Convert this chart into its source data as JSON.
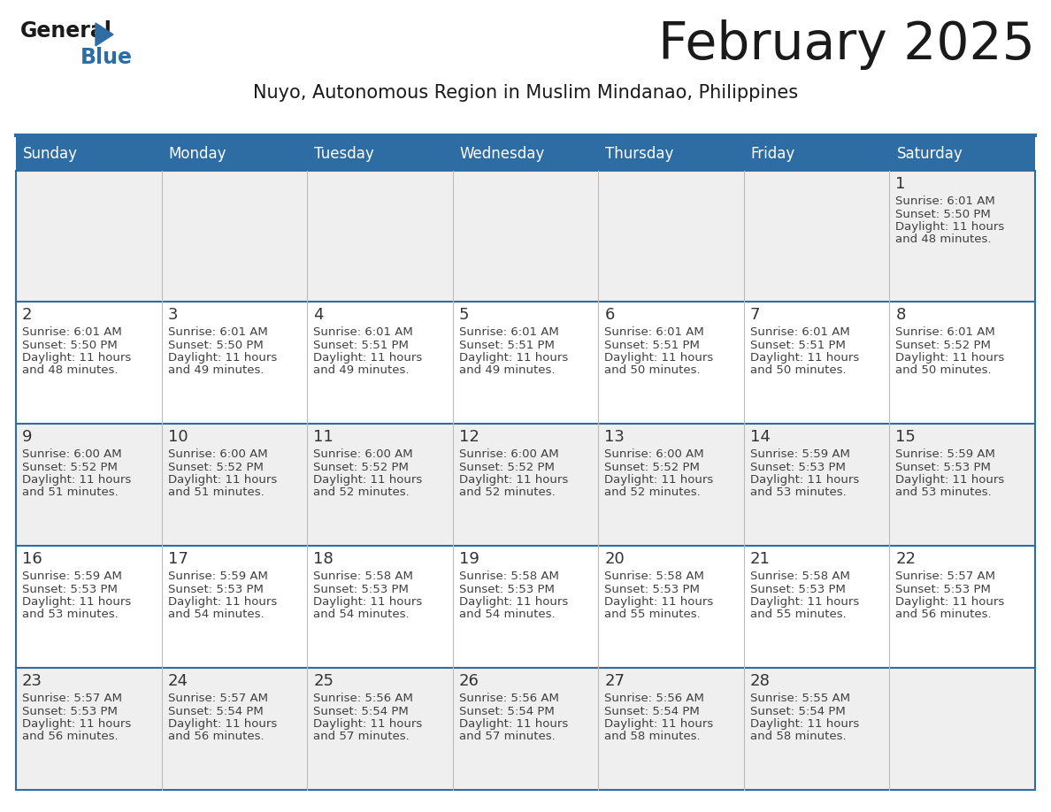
{
  "title": "February 2025",
  "subtitle": "Nuyo, Autonomous Region in Muslim Mindanao, Philippines",
  "header_bg": "#2E6DA4",
  "header_text": "#FFFFFF",
  "cell_bg_gray": "#EFEFEF",
  "cell_bg_white": "#FFFFFF",
  "border_color": "#2E6DA4",
  "grid_color": "#2E6DA4",
  "text_color": "#404040",
  "day_num_color": "#333333",
  "day_headers": [
    "Sunday",
    "Monday",
    "Tuesday",
    "Wednesday",
    "Thursday",
    "Friday",
    "Saturday"
  ],
  "days_data": [
    {
      "day": 1,
      "col": 6,
      "row": 0,
      "sunrise": "6:01 AM",
      "sunset": "5:50 PM",
      "daylight_min": "48"
    },
    {
      "day": 2,
      "col": 0,
      "row": 1,
      "sunrise": "6:01 AM",
      "sunset": "5:50 PM",
      "daylight_min": "48"
    },
    {
      "day": 3,
      "col": 1,
      "row": 1,
      "sunrise": "6:01 AM",
      "sunset": "5:50 PM",
      "daylight_min": "49"
    },
    {
      "day": 4,
      "col": 2,
      "row": 1,
      "sunrise": "6:01 AM",
      "sunset": "5:51 PM",
      "daylight_min": "49"
    },
    {
      "day": 5,
      "col": 3,
      "row": 1,
      "sunrise": "6:01 AM",
      "sunset": "5:51 PM",
      "daylight_min": "49"
    },
    {
      "day": 6,
      "col": 4,
      "row": 1,
      "sunrise": "6:01 AM",
      "sunset": "5:51 PM",
      "daylight_min": "50"
    },
    {
      "day": 7,
      "col": 5,
      "row": 1,
      "sunrise": "6:01 AM",
      "sunset": "5:51 PM",
      "daylight_min": "50"
    },
    {
      "day": 8,
      "col": 6,
      "row": 1,
      "sunrise": "6:01 AM",
      "sunset": "5:52 PM",
      "daylight_min": "50"
    },
    {
      "day": 9,
      "col": 0,
      "row": 2,
      "sunrise": "6:00 AM",
      "sunset": "5:52 PM",
      "daylight_min": "51"
    },
    {
      "day": 10,
      "col": 1,
      "row": 2,
      "sunrise": "6:00 AM",
      "sunset": "5:52 PM",
      "daylight_min": "51"
    },
    {
      "day": 11,
      "col": 2,
      "row": 2,
      "sunrise": "6:00 AM",
      "sunset": "5:52 PM",
      "daylight_min": "52"
    },
    {
      "day": 12,
      "col": 3,
      "row": 2,
      "sunrise": "6:00 AM",
      "sunset": "5:52 PM",
      "daylight_min": "52"
    },
    {
      "day": 13,
      "col": 4,
      "row": 2,
      "sunrise": "6:00 AM",
      "sunset": "5:52 PM",
      "daylight_min": "52"
    },
    {
      "day": 14,
      "col": 5,
      "row": 2,
      "sunrise": "5:59 AM",
      "sunset": "5:53 PM",
      "daylight_min": "53"
    },
    {
      "day": 15,
      "col": 6,
      "row": 2,
      "sunrise": "5:59 AM",
      "sunset": "5:53 PM",
      "daylight_min": "53"
    },
    {
      "day": 16,
      "col": 0,
      "row": 3,
      "sunrise": "5:59 AM",
      "sunset": "5:53 PM",
      "daylight_min": "53"
    },
    {
      "day": 17,
      "col": 1,
      "row": 3,
      "sunrise": "5:59 AM",
      "sunset": "5:53 PM",
      "daylight_min": "54"
    },
    {
      "day": 18,
      "col": 2,
      "row": 3,
      "sunrise": "5:58 AM",
      "sunset": "5:53 PM",
      "daylight_min": "54"
    },
    {
      "day": 19,
      "col": 3,
      "row": 3,
      "sunrise": "5:58 AM",
      "sunset": "5:53 PM",
      "daylight_min": "54"
    },
    {
      "day": 20,
      "col": 4,
      "row": 3,
      "sunrise": "5:58 AM",
      "sunset": "5:53 PM",
      "daylight_min": "55"
    },
    {
      "day": 21,
      "col": 5,
      "row": 3,
      "sunrise": "5:58 AM",
      "sunset": "5:53 PM",
      "daylight_min": "55"
    },
    {
      "day": 22,
      "col": 6,
      "row": 3,
      "sunrise": "5:57 AM",
      "sunset": "5:53 PM",
      "daylight_min": "56"
    },
    {
      "day": 23,
      "col": 0,
      "row": 4,
      "sunrise": "5:57 AM",
      "sunset": "5:53 PM",
      "daylight_min": "56"
    },
    {
      "day": 24,
      "col": 1,
      "row": 4,
      "sunrise": "5:57 AM",
      "sunset": "5:54 PM",
      "daylight_min": "56"
    },
    {
      "day": 25,
      "col": 2,
      "row": 4,
      "sunrise": "5:56 AM",
      "sunset": "5:54 PM",
      "daylight_min": "57"
    },
    {
      "day": 26,
      "col": 3,
      "row": 4,
      "sunrise": "5:56 AM",
      "sunset": "5:54 PM",
      "daylight_min": "57"
    },
    {
      "day": 27,
      "col": 4,
      "row": 4,
      "sunrise": "5:56 AM",
      "sunset": "5:54 PM",
      "daylight_min": "58"
    },
    {
      "day": 28,
      "col": 5,
      "row": 4,
      "sunrise": "5:55 AM",
      "sunset": "5:54 PM",
      "daylight_min": "58"
    }
  ],
  "num_rows": 5,
  "num_cols": 7,
  "row_bg": [
    "gray",
    "white",
    "gray",
    "white",
    "gray"
  ],
  "logo_text_general": "General",
  "logo_text_blue": "Blue",
  "logo_color_general": "#1a1a1a",
  "logo_color_blue": "#2E6DA4",
  "logo_triangle_color": "#2E6DA4"
}
